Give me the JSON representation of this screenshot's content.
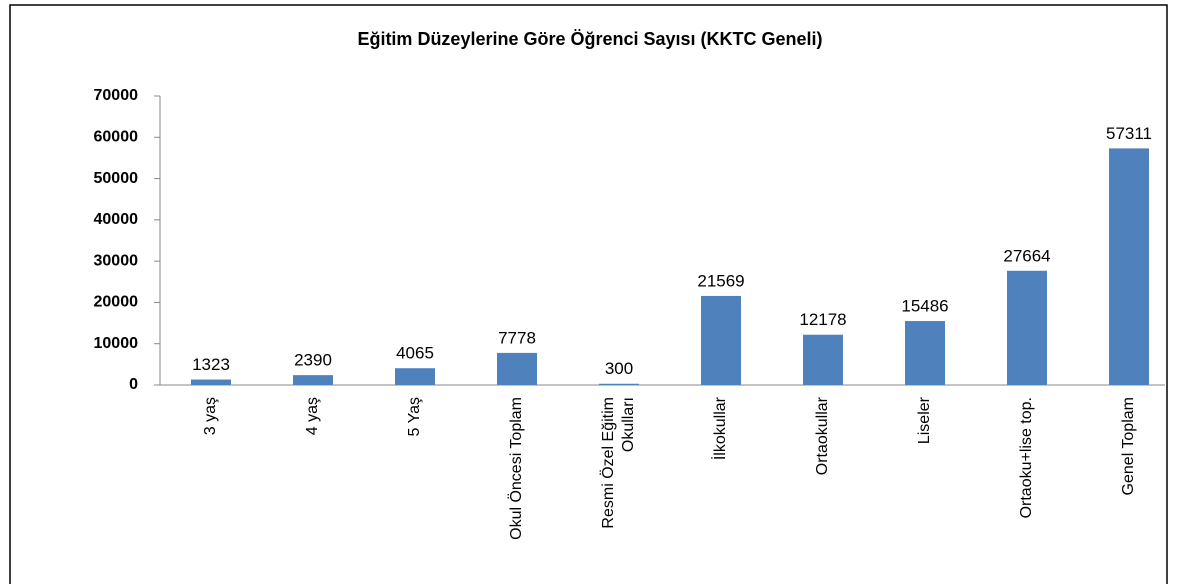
{
  "chart_data": {
    "type": "bar",
    "title": "Eğitim Düzeylerine Göre Öğrenci Sayısı (KKTC Geneli)",
    "categories": [
      "3 yaş",
      "4 yaş",
      "5 Yaş",
      "Okul Öncesi Toplam",
      "Resmi Özel Eğitim Okulları",
      "İlkokullar",
      "Ortaokullar",
      "Liseler",
      "Ortaoku+lise top.",
      "Genel Toplam"
    ],
    "values": [
      1323,
      2390,
      4065,
      7778,
      300,
      21569,
      12178,
      15486,
      27664,
      57311
    ],
    "color": "#4f81bd",
    "ylim": [
      0,
      70000
    ],
    "yticks": [
      0,
      10000,
      20000,
      30000,
      40000,
      50000,
      60000,
      70000
    ],
    "grid": false
  }
}
